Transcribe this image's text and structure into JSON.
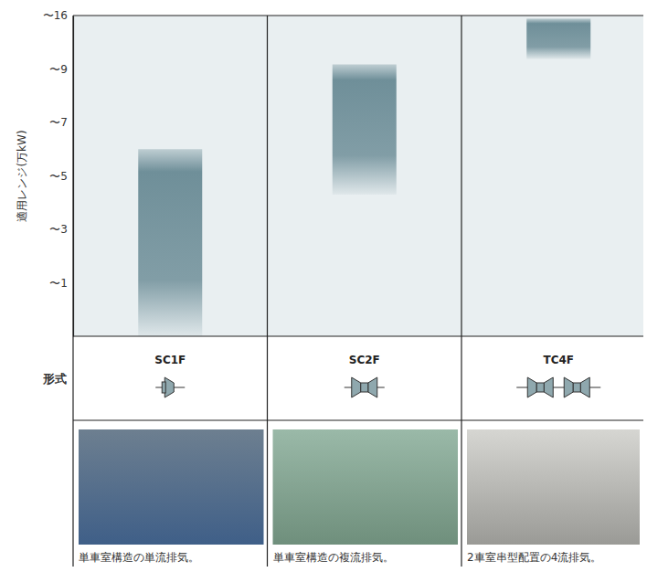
{
  "chart_data": {
    "type": "floating_bar",
    "ylabel": "適用レンジ(万kW)",
    "xlabel": "形式",
    "categories": [
      "SC1F",
      "SC2F",
      "TC4F"
    ],
    "values": [
      [
        0,
        6
      ],
      [
        4.3,
        9.6
      ],
      [
        10.3,
        15.6
      ]
    ],
    "captions": [
      "単車室構造の単流排気。",
      "単車室構造の複流排気。",
      "2車室串型配置の4流排気。"
    ],
    "color": "#6f8f99",
    "ylim": [
      0,
      16
    ],
    "yticks": [
      {
        "value": 1,
        "label": "〜1"
      },
      {
        "value": 3,
        "label": "〜3"
      },
      {
        "value": 5,
        "label": "〜5"
      },
      {
        "value": 7,
        "label": "〜7"
      },
      {
        "value": 9,
        "label": "〜9"
      },
      {
        "value": 16,
        "label": "〜16"
      }
    ],
    "grid": false
  }
}
